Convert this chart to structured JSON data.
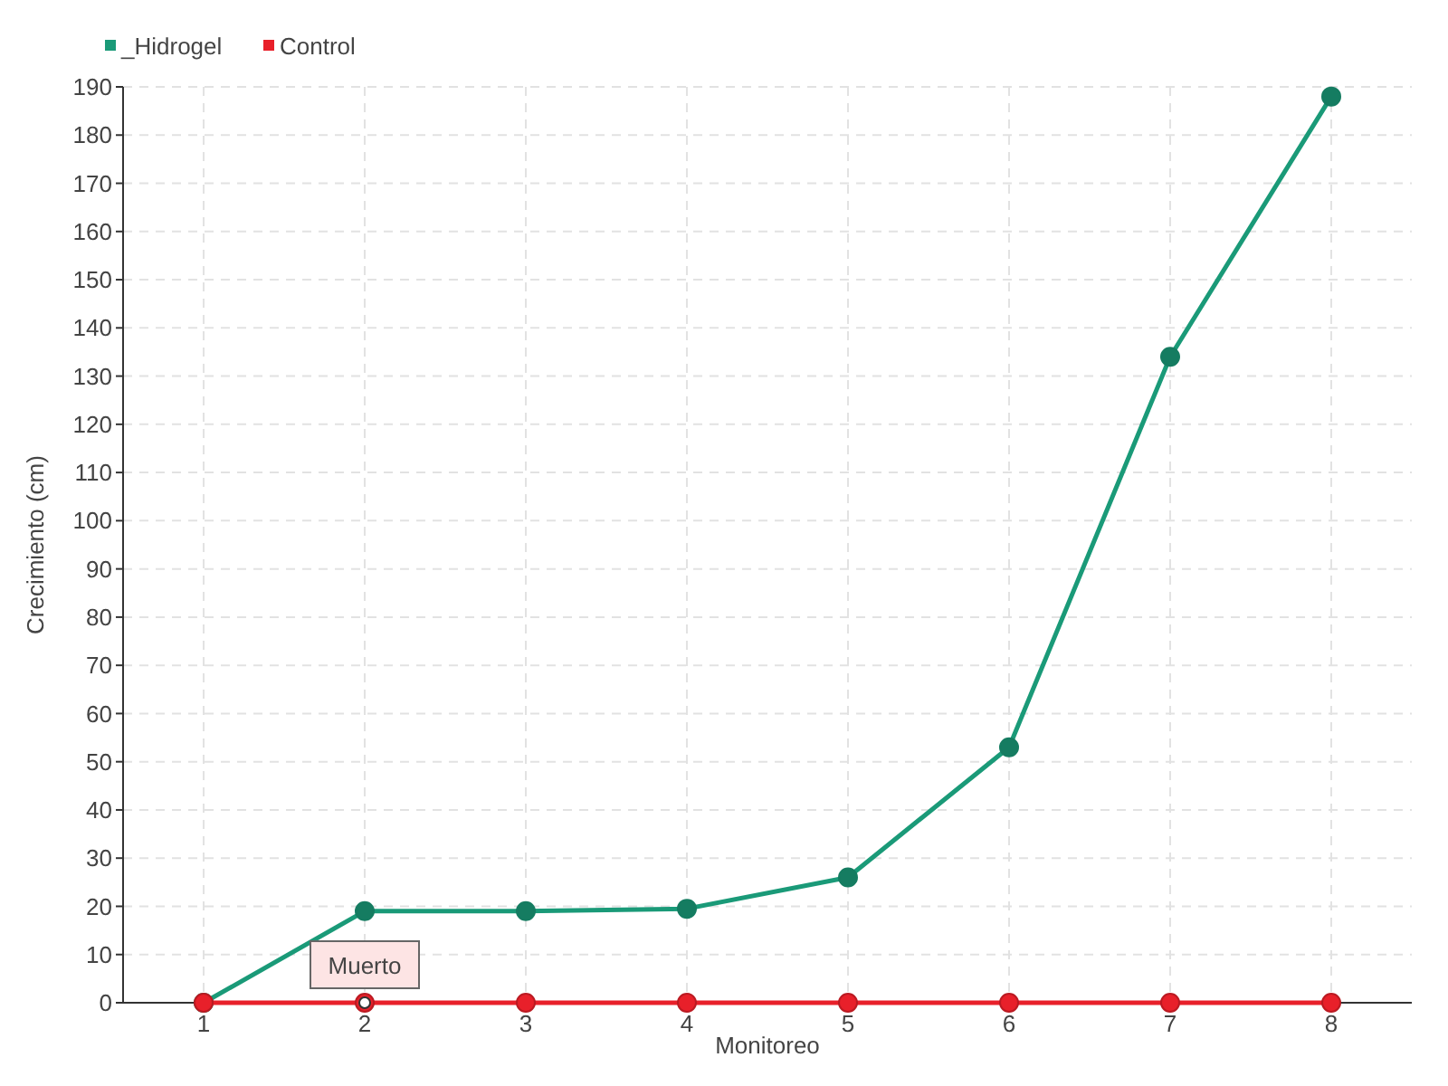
{
  "chart_data": {
    "type": "line",
    "xlabel": "Monitoreo",
    "ylabel": "Crecimiento (cm)",
    "categories": [
      "1",
      "2",
      "3",
      "4",
      "5",
      "6",
      "7",
      "8"
    ],
    "series": [
      {
        "name": "_Hidrogel",
        "color": "#1a9a78",
        "values": [
          0,
          19,
          19,
          19.5,
          26,
          53,
          134,
          188
        ]
      },
      {
        "name": "Control",
        "color": "#e8202a",
        "values": [
          0,
          0,
          0,
          0,
          0,
          0,
          0,
          0
        ]
      }
    ],
    "ylim": [
      0,
      190
    ],
    "yticks": [
      0,
      10,
      20,
      30,
      40,
      50,
      60,
      70,
      80,
      90,
      100,
      110,
      120,
      130,
      140,
      150,
      160,
      170,
      180,
      190
    ],
    "grid": true,
    "legend": "top left",
    "marker": "circle",
    "line_style": "solid",
    "annotations": [
      {
        "text": "Muerto",
        "x": "2",
        "y": 0
      }
    ]
  }
}
